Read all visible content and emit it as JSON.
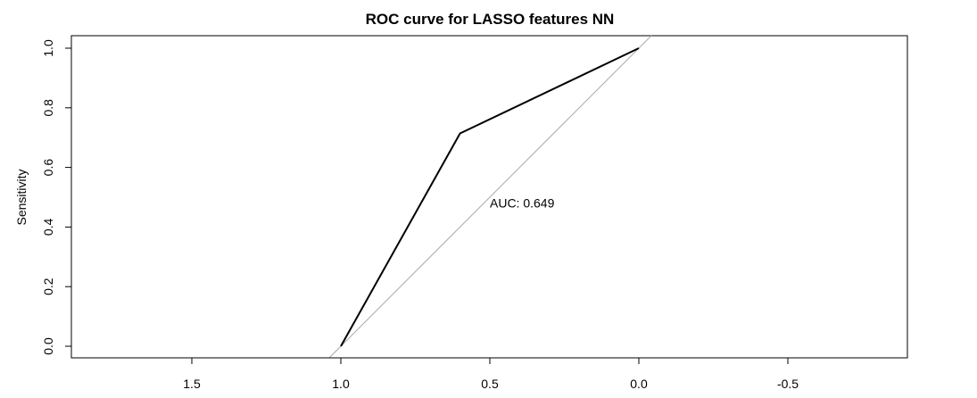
{
  "chart_data": {
    "type": "line",
    "title": "ROC curve for LASSO features NN",
    "xlabel": "",
    "ylabel": "Sensitivity",
    "xlim": [
      1.8,
      -0.8
    ],
    "ylim": [
      0.0,
      1.0
    ],
    "x_reversed": true,
    "x_ticks": [
      1.5,
      1.0,
      0.5,
      0.0,
      -0.5
    ],
    "x_tick_labels": [
      "1.5",
      "1.0",
      "0.5",
      "0.0",
      "-0.5"
    ],
    "y_ticks": [
      0.0,
      0.2,
      0.4,
      0.6,
      0.8,
      1.0
    ],
    "y_tick_labels": [
      "0.0",
      "0.2",
      "0.4",
      "0.6",
      "0.8",
      "1.0"
    ],
    "grid": false,
    "series": [
      {
        "x": [
          1.0,
          0.6,
          0.0
        ],
        "y": [
          0.0,
          0.714,
          1.0
        ],
        "color": "#000000"
      }
    ],
    "reference_line": {
      "type": "diagonal",
      "color": "#aaaaaa"
    },
    "annotation": {
      "text": "AUC: 0.649",
      "x": 0.5,
      "y": 0.48
    }
  }
}
